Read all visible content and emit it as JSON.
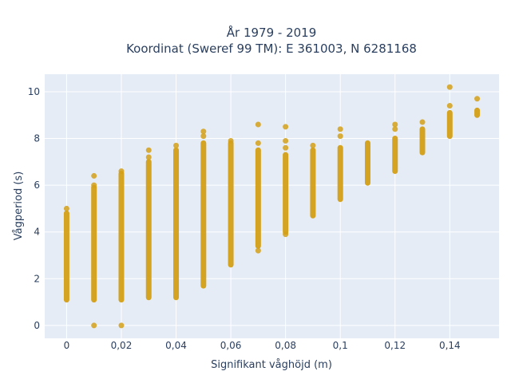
{
  "chart_data": {
    "type": "scatter",
    "title_line1": "År 1979 - 2019",
    "title_line2": "Koordinat (Sweref 99 TM): E 361003, N 6281168",
    "xlabel": "Signifikant våghöjd (m)",
    "ylabel": "Vågperiod (s)",
    "xlim": [
      -0.008,
      0.158
    ],
    "ylim": [
      -0.55,
      10.75
    ],
    "x_ticks": [
      0,
      0.02,
      0.04,
      0.06,
      0.08,
      0.1,
      0.12,
      0.14
    ],
    "x_tick_labels": [
      "0",
      "0,02",
      "0,04",
      "0,06",
      "0,08",
      "0,1",
      "0,12",
      "0,14"
    ],
    "y_ticks": [
      0,
      2,
      4,
      6,
      8,
      10
    ],
    "y_tick_labels": [
      "0",
      "2",
      "4",
      "6",
      "8",
      "10"
    ],
    "grid": true,
    "background": "#e5ecf6",
    "marker_color": "#d4a017",
    "columns": [
      {
        "x": 0.0,
        "ymin": 1.1,
        "ymax": 4.8,
        "outliers": [
          5.0
        ]
      },
      {
        "x": 0.01,
        "ymin": 1.1,
        "ymax": 5.9,
        "outliers": [
          0.0,
          6.0,
          6.4
        ]
      },
      {
        "x": 0.02,
        "ymin": 1.1,
        "ymax": 6.5,
        "outliers": [
          0.0,
          6.6
        ]
      },
      {
        "x": 0.03,
        "ymin": 1.2,
        "ymax": 7.0,
        "outliers": [
          7.2,
          7.5
        ]
      },
      {
        "x": 0.04,
        "ymin": 1.2,
        "ymax": 7.5,
        "outliers": [
          7.7
        ]
      },
      {
        "x": 0.05,
        "ymin": 1.7,
        "ymax": 7.8,
        "outliers": [
          8.1,
          8.3
        ]
      },
      {
        "x": 0.06,
        "ymin": 2.6,
        "ymax": 7.8,
        "outliers": [
          7.9
        ]
      },
      {
        "x": 0.07,
        "ymin": 3.4,
        "ymax": 7.5,
        "outliers": [
          3.2,
          7.8,
          8.6
        ]
      },
      {
        "x": 0.08,
        "ymin": 4.0,
        "ymax": 7.3,
        "outliers": [
          3.9,
          7.6,
          7.9,
          8.5
        ]
      },
      {
        "x": 0.09,
        "ymin": 4.7,
        "ymax": 7.5,
        "outliers": [
          7.7
        ]
      },
      {
        "x": 0.1,
        "ymin": 5.4,
        "ymax": 7.6,
        "outliers": [
          8.1,
          8.4
        ]
      },
      {
        "x": 0.11,
        "ymin": 6.1,
        "ymax": 7.8,
        "outliers": []
      },
      {
        "x": 0.12,
        "ymin": 6.6,
        "ymax": 8.0,
        "outliers": [
          8.4,
          8.6
        ]
      },
      {
        "x": 0.13,
        "ymin": 7.4,
        "ymax": 8.4,
        "outliers": [
          8.7
        ]
      },
      {
        "x": 0.14,
        "ymin": 8.1,
        "ymax": 9.1,
        "outliers": [
          9.4,
          10.2
        ]
      },
      {
        "x": 0.15,
        "ymin": 9.0,
        "ymax": 9.2,
        "outliers": [
          9.7
        ]
      }
    ]
  }
}
